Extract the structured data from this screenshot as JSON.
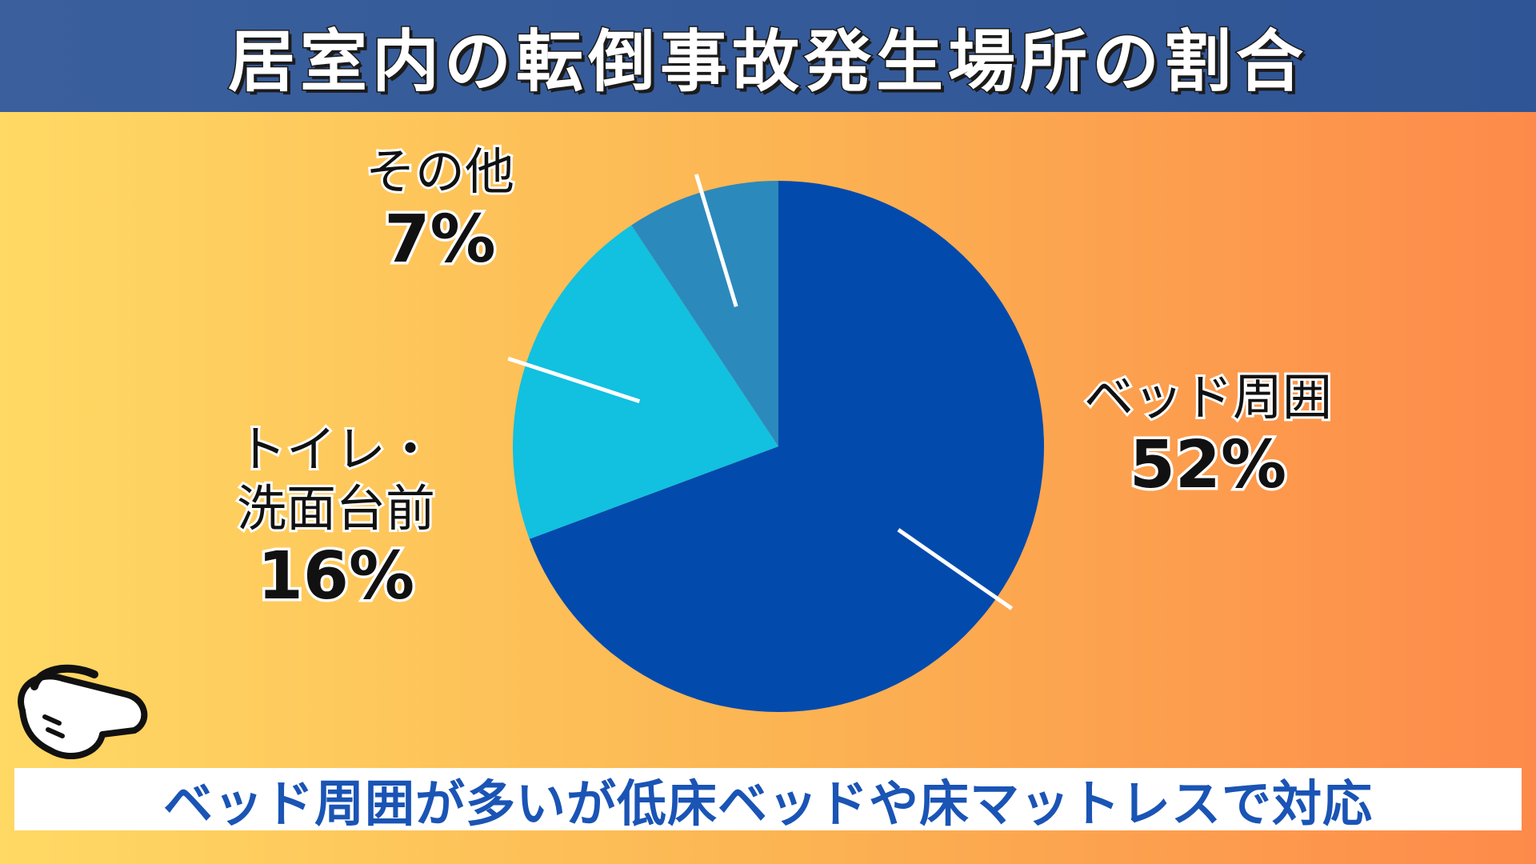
{
  "header": {
    "title": "居室内の転倒事故発生場所の割合"
  },
  "chart_data": {
    "type": "pie",
    "title": "居室内の転倒事故発生場所の割合",
    "slices": [
      {
        "label": "ベッド周囲",
        "value": 52,
        "value_label": "52%",
        "color": "#034aad"
      },
      {
        "label": "トイレ・洗面台前",
        "label_lines": [
          "トイレ・",
          "洗面台前"
        ],
        "value": 16,
        "value_label": "16%",
        "color": "#12c0e0"
      },
      {
        "label": "その他",
        "value": 7,
        "value_label": "7%",
        "color": "#2c89bc"
      }
    ],
    "legend": "none",
    "grid": false
  },
  "footer": {
    "message": "ベッド周囲が多いが低床ベッドや床マットレスで対応"
  },
  "icons": {
    "pointer": "pointing-hand-icon"
  }
}
